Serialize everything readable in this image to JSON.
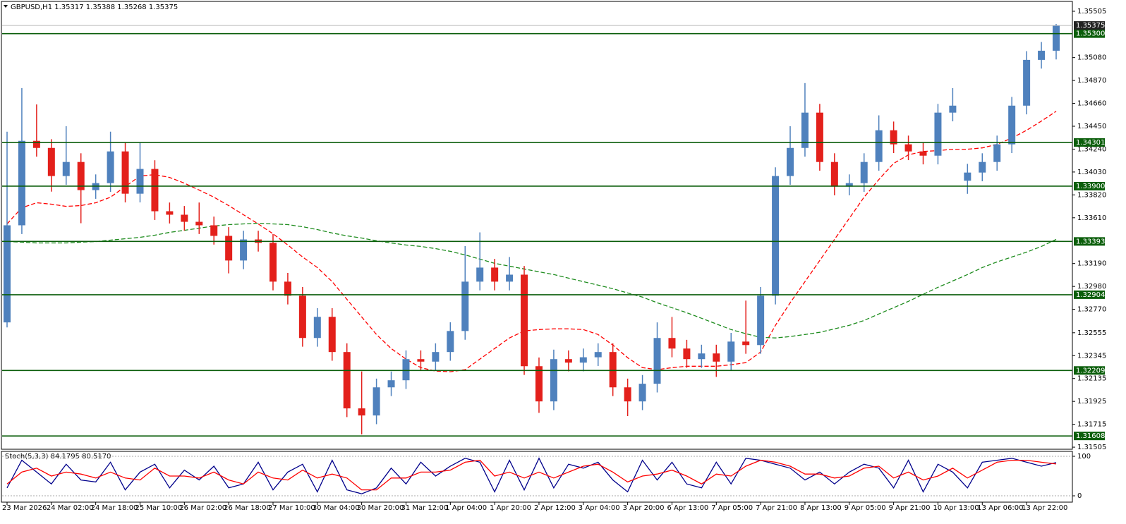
{
  "chart_data": [
    {
      "type": "candlestick",
      "title": "GBPUSD,H1  1.35317 1.35388 1.35268 1.35375",
      "categories": [
        "23 Mar 2026",
        null,
        null,
        "24 Mar 02:00",
        null,
        null,
        "24 Mar 18:00",
        null,
        null,
        "25 Mar 10:00",
        null,
        null,
        "26 Mar 02:00",
        null,
        null,
        "26 Mar 18:00",
        null,
        null,
        "27 Mar 10:00",
        null,
        null,
        "30 Mar 04:00",
        null,
        null,
        "30 Mar 20:00",
        null,
        null,
        "31 Mar 12:00",
        null,
        null,
        "1 Apr 04:00",
        null,
        null,
        "1 Apr 20:00",
        null,
        null,
        "2 Apr 12:00",
        null,
        null,
        "3 Apr 04:00",
        null,
        null,
        "3 Apr 20:00",
        null,
        null,
        "6 Apr 13:00",
        null,
        null,
        "7 Apr 05:00",
        null,
        null,
        "7 Apr 21:00",
        null,
        null,
        "8 Apr 13:00",
        null,
        null,
        "9 Apr 05:00",
        null,
        null,
        "9 Apr 21:00",
        null,
        null,
        "10 Apr 13:00",
        null,
        null,
        "13 Apr 06:00",
        null,
        null,
        "13 Apr 22:00",
        null,
        null
      ],
      "open": [
        1.3265,
        1.33541,
        1.34316,
        1.34251,
        1.33993,
        1.34122,
        1.33864,
        1.33928,
        1.34219,
        1.33831,
        1.34058,
        1.3367,
        1.33638,
        1.33573,
        1.33541,
        1.33444,
        1.33218,
        1.33411,
        1.3338,
        1.33024,
        1.32895,
        1.32507,
        1.32701,
        1.32378,
        1.31861,
        1.31796,
        1.32054,
        1.32119,
        1.32313,
        1.3229,
        1.32378,
        1.32571,
        1.33024,
        1.33153,
        1.33024,
        1.33088,
        1.32248,
        1.31925,
        1.32313,
        1.32281,
        1.3233,
        1.32378,
        1.32054,
        1.31925,
        1.32087,
        1.32507,
        1.3241,
        1.32313,
        1.32365,
        1.3229,
        1.32474,
        1.32442,
        1.32895,
        1.33993,
        1.34251,
        1.34575,
        1.34122,
        1.33896,
        1.33928,
        1.34122,
        1.34413,
        1.34284,
        1.34219,
        1.3418,
        1.34575,
        1.3395,
        1.34025,
        1.34122,
        1.34284,
        1.34639,
        1.35059,
        1.35143
      ],
      "high": [
        1.344,
        1.348,
        1.3465,
        1.34331,
        1.3445,
        1.34202,
        1.34008,
        1.344,
        1.34299,
        1.343,
        1.34138,
        1.3375,
        1.33718,
        1.3375,
        1.33621,
        1.33524,
        1.33491,
        1.33491,
        1.3346,
        1.33104,
        1.32975,
        1.32781,
        1.32781,
        1.32458,
        1.322,
        1.32134,
        1.32199,
        1.32393,
        1.32393,
        1.32458,
        1.32651,
        1.3335,
        1.33476,
        1.33233,
        1.3325,
        1.33168,
        1.32328,
        1.324,
        1.32393,
        1.3241,
        1.32458,
        1.32458,
        1.32134,
        1.32167,
        1.3265,
        1.327,
        1.3249,
        1.32445,
        1.32445,
        1.32554,
        1.3285,
        1.32975,
        1.34073,
        1.3445,
        1.34846,
        1.34655,
        1.34202,
        1.34008,
        1.34202,
        1.3455,
        1.34493,
        1.34364,
        1.34299,
        1.34655,
        1.348,
        1.34105,
        1.34202,
        1.34364,
        1.34719,
        1.35139,
        1.35223,
        1.35388
      ],
      "low": [
        1.32604,
        1.33461,
        1.34171,
        1.3385,
        1.33913,
        1.3356,
        1.33784,
        1.33848,
        1.33751,
        1.33751,
        1.3359,
        1.33558,
        1.33493,
        1.33461,
        1.33364,
        1.331,
        1.33138,
        1.333,
        1.32944,
        1.32815,
        1.32427,
        1.32427,
        1.32298,
        1.31781,
        1.31622,
        1.31716,
        1.31974,
        1.32039,
        1.3221,
        1.3221,
        1.32298,
        1.32491,
        1.32944,
        1.32944,
        1.32944,
        1.32168,
        1.3182,
        1.31845,
        1.32201,
        1.32201,
        1.3225,
        1.31974,
        1.3179,
        1.31845,
        1.32007,
        1.3233,
        1.32233,
        1.32233,
        1.3215,
        1.3221,
        1.32362,
        1.32362,
        1.32815,
        1.33913,
        1.34171,
        1.34042,
        1.33816,
        1.33816,
        1.33848,
        1.34042,
        1.34204,
        1.34139,
        1.341,
        1.341,
        1.34495,
        1.3383,
        1.33945,
        1.34042,
        1.34204,
        1.34559,
        1.34979,
        1.35063
      ],
      "close": [
        1.33541,
        1.34316,
        1.34251,
        1.33993,
        1.34122,
        1.33864,
        1.33928,
        1.34219,
        1.33831,
        1.34058,
        1.3367,
        1.33638,
        1.33573,
        1.33541,
        1.33444,
        1.33218,
        1.33411,
        1.3338,
        1.33024,
        1.32895,
        1.32507,
        1.32701,
        1.32378,
        1.31861,
        1.31796,
        1.32054,
        1.32119,
        1.32313,
        1.3229,
        1.32378,
        1.32571,
        1.33024,
        1.33153,
        1.33024,
        1.33088,
        1.32248,
        1.31925,
        1.32313,
        1.32281,
        1.3233,
        1.32378,
        1.32054,
        1.31925,
        1.32087,
        1.32507,
        1.3241,
        1.32313,
        1.32365,
        1.3229,
        1.32474,
        1.32442,
        1.32895,
        1.33993,
        1.34251,
        1.34575,
        1.34122,
        1.33896,
        1.33928,
        1.34122,
        1.34413,
        1.34284,
        1.34219,
        1.3418,
        1.34575,
        1.34639,
        1.34025,
        1.34122,
        1.34284,
        1.34639,
        1.35059,
        1.35143,
        1.35375
      ],
      "up_color": "#4f81bd",
      "down_color": "#e3201b",
      "lines": [
        {
          "color": "#ff0000",
          "values": [
            1.33554,
            1.33702,
            1.33748,
            1.33735,
            1.33715,
            1.33722,
            1.33748,
            1.33799,
            1.33896,
            1.33993,
            1.34006,
            1.3398,
            1.33928,
            1.33864,
            1.33799,
            1.33722,
            1.33638,
            1.33554,
            1.33463,
            1.3336,
            1.3325,
            1.33153,
            1.33024,
            1.32862,
            1.32701,
            1.32539,
            1.3241,
            1.32313,
            1.32235,
            1.32203,
            1.32197,
            1.32216,
            1.32313,
            1.3241,
            1.32507,
            1.32571,
            1.32584,
            1.32591,
            1.32591,
            1.32584,
            1.32539,
            1.32442,
            1.32326,
            1.32235,
            1.32216,
            1.32235,
            1.32248,
            1.32248,
            1.32248,
            1.32261,
            1.32281,
            1.32378,
            1.32623,
            1.3283,
            1.33024,
            1.33218,
            1.33411,
            1.33605,
            1.33799,
            1.33961,
            1.34109,
            1.34187,
            1.34219,
            1.34226,
            1.34239,
            1.34239,
            1.34251,
            1.34284,
            1.34342,
            1.34413,
            1.34497,
            1.34587
          ]
        },
        {
          "color": "#1e8c1e",
          "values": [
            1.33392,
            1.33386,
            1.33379,
            1.33379,
            1.33379,
            1.33386,
            1.33392,
            1.33405,
            1.33418,
            1.33431,
            1.3345,
            1.33476,
            1.33495,
            1.33515,
            1.33534,
            1.33547,
            1.33554,
            1.3356,
            1.33554,
            1.33547,
            1.33528,
            1.33502,
            1.3347,
            1.33444,
            1.33424,
            1.33399,
            1.33379,
            1.3336,
            1.33347,
            1.33327,
            1.33302,
            1.33269,
            1.33231,
            1.33192,
            1.33166,
            1.3314,
            1.33114,
            1.33089,
            1.33056,
            1.33024,
            1.32992,
            1.32959,
            1.3292,
            1.32882,
            1.3283,
            1.32785,
            1.32739,
            1.32688,
            1.32636,
            1.32584,
            1.32546,
            1.32513,
            1.32507,
            1.3252,
            1.32539,
            1.32559,
            1.32591,
            1.32623,
            1.32668,
            1.32727,
            1.32785,
            1.32843,
            1.32908,
            1.32972,
            1.3303,
            1.33089,
            1.33153,
            1.33205,
            1.3325,
            1.33295,
            1.33347,
            1.33411
          ]
        }
      ],
      "ylim": [
        1.31486,
        1.35589
      ],
      "yticks": [
        1.35505,
        {
          "value": 1.3508,
          "label": "1.35080"
        },
        {
          "value": 1.3487,
          "label": "1.34870"
        },
        {
          "value": 1.3466,
          "label": "1.34660"
        },
        {
          "value": 1.3445,
          "label": "1.34450"
        },
        {
          "value": 1.3424,
          "label": "1.34240"
        },
        {
          "value": 1.3403,
          "label": "1.34030"
        },
        {
          "value": 1.3382,
          "label": "1.33820"
        },
        {
          "value": 1.3361,
          "label": "1.33610"
        },
        {
          "value": 1.3319,
          "label": "1.33190"
        },
        {
          "value": 1.3298,
          "label": "1.32980"
        },
        {
          "value": 1.3277,
          "label": "1.32770"
        },
        1.32555,
        1.32345,
        1.32135,
        1.31925,
        1.31715,
        1.31505
      ],
      "levels": [
        {
          "value": 1.353,
          "label": "1.35300"
        },
        1.34301,
        {
          "value": 1.339,
          "label": "1.33900"
        },
        1.33393,
        1.32904,
        1.32209,
        1.31608
      ],
      "level_color": "#0b5e0b",
      "last_price": 1.35375,
      "grid": false
    },
    {
      "type": "line",
      "title": "Stoch(5,3,3) 84.1795 80.5170",
      "series": [
        {
          "color": "#00008b",
          "values": [
            20,
            90,
            60,
            30,
            80,
            40,
            35,
            85,
            15,
            60,
            80,
            20,
            65,
            40,
            75,
            20,
            30,
            85,
            15,
            60,
            80,
            10,
            90,
            15,
            5,
            20,
            70,
            30,
            85,
            50,
            75,
            95,
            85,
            10,
            90,
            15,
            95,
            20,
            80,
            70,
            85,
            40,
            10,
            90,
            40,
            85,
            30,
            20,
            85,
            30,
            95,
            90,
            80,
            70,
            40,
            60,
            30,
            60,
            80,
            70,
            20,
            90,
            10,
            80,
            60,
            20,
            85,
            90,
            95,
            85,
            75,
            84.1795
          ]
        },
        {
          "color": "#ff0000",
          "values": [
            30,
            60,
            70,
            50,
            60,
            55,
            45,
            60,
            45,
            40,
            70,
            50,
            50,
            45,
            60,
            40,
            30,
            60,
            45,
            40,
            65,
            45,
            55,
            45,
            15,
            15,
            45,
            45,
            60,
            60,
            65,
            85,
            90,
            50,
            60,
            45,
            60,
            45,
            60,
            75,
            80,
            60,
            35,
            50,
            55,
            65,
            50,
            30,
            55,
            50,
            75,
            90,
            85,
            75,
            55,
            55,
            45,
            50,
            70,
            75,
            45,
            60,
            40,
            50,
            70,
            45,
            65,
            85,
            90,
            90,
            85,
            80.517
          ]
        }
      ],
      "ylim": [
        -16,
        112.5
      ],
      "yticks": [
        0,
        100
      ],
      "grid": true
    }
  ]
}
